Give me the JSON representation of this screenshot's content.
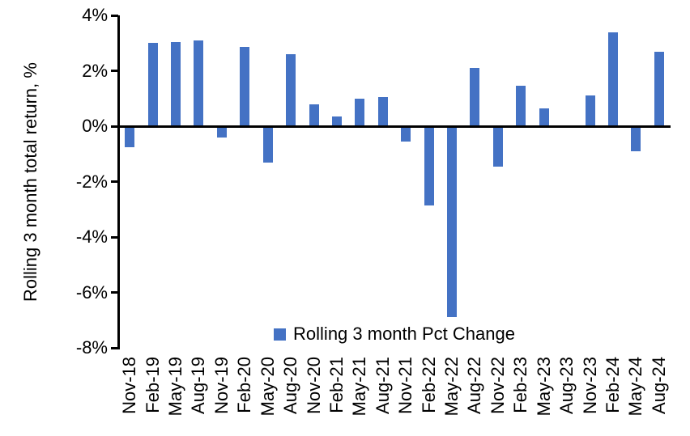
{
  "chart_data": {
    "type": "bar",
    "title": "",
    "ylabel": "Rolling 3 month total return, %",
    "xlabel": "",
    "categories": [
      "Nov-18",
      "Feb-19",
      "May-19",
      "Aug-19",
      "Nov-19",
      "Feb-20",
      "May-20",
      "Aug-20",
      "Nov-20",
      "Feb-21",
      "May-21",
      "Aug-21",
      "Nov-21",
      "Feb-22",
      "May-22",
      "Aug-22",
      "Nov-22",
      "Feb-23",
      "May-23",
      "Aug-23",
      "Nov-23",
      "Feb-24",
      "May-24",
      "Aug-24"
    ],
    "values": [
      -0.75,
      3.0,
      3.05,
      3.1,
      -0.4,
      2.85,
      -1.3,
      2.6,
      0.8,
      0.35,
      1.0,
      1.05,
      -0.55,
      -2.85,
      -6.9,
      2.1,
      -1.45,
      1.45,
      0.65,
      0.0,
      1.1,
      3.4,
      -0.9,
      2.7
    ],
    "ylim": [
      -8,
      4
    ],
    "ytick_labels": [
      "4%",
      "2%",
      "0%",
      "-2%",
      "-4%",
      "-6%",
      "-8%"
    ],
    "grid": false,
    "legend": {
      "label": "Rolling 3 month Pct Change",
      "position": "bottom-center-inside"
    },
    "colors": {
      "bar": "#4472C4",
      "axis": "#000000",
      "text": "#000000",
      "background": "#FFFFFF"
    }
  }
}
